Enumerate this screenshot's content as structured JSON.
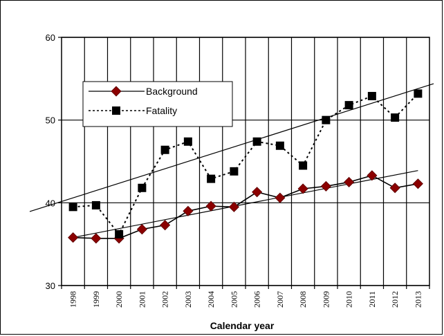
{
  "chart_data": {
    "type": "line",
    "title": "",
    "xlabel": "Calendar year",
    "ylabel": "",
    "categories": [
      "1998",
      "1999",
      "2000",
      "2001",
      "2002",
      "2003",
      "2004",
      "2005",
      "2006",
      "2007",
      "2008",
      "2009",
      "2010",
      "2011",
      "2012",
      "2013"
    ],
    "ylim": [
      30,
      60
    ],
    "yticks": [
      "30",
      "40",
      "50",
      "60"
    ],
    "grid": "vertical lines at each year, horizontal lines at major ticks",
    "legend": "top-left",
    "series": [
      {
        "name": "Background",
        "marker": "diamond",
        "line_style": "solid",
        "color": "#8b0000",
        "values": [
          35.8,
          35.7,
          35.7,
          36.8,
          37.3,
          39.0,
          39.6,
          39.5,
          41.3,
          40.6,
          41.7,
          42.0,
          42.5,
          43.3,
          41.8,
          42.3
        ],
        "trendline": [
          35.8,
          43.9
        ]
      },
      {
        "name": "Fatality",
        "marker": "square",
        "line_style": "dashed",
        "color": "#000000",
        "values": [
          39.5,
          39.7,
          36.2,
          41.8,
          46.4,
          47.4,
          42.9,
          43.8,
          47.4,
          46.9,
          44.5,
          50.0,
          51.8,
          52.9,
          50.3,
          53.2
        ],
        "trendline": [
          40.6,
          53.8
        ]
      }
    ]
  }
}
